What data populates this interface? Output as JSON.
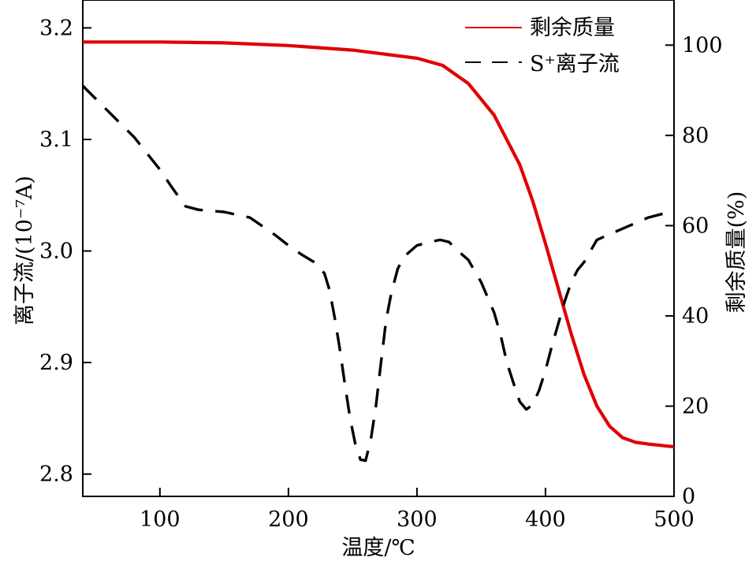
{
  "chart_data": {
    "type": "line",
    "xlabel": "温度/℃",
    "ylabel_left": "离子流/(10⁻⁷A)",
    "ylabel_right": "剩余质量(%)",
    "xlim": [
      40,
      500
    ],
    "ylim_left": [
      2.78,
      3.225
    ],
    "ylim_right": [
      0,
      110
    ],
    "x_ticks": [
      100,
      200,
      300,
      400,
      500
    ],
    "y_left_ticks": [
      2.8,
      2.9,
      3.0,
      3.1,
      3.2
    ],
    "y_right_ticks": [
      0,
      20,
      40,
      60,
      80,
      100
    ],
    "x_tick_labels": [
      "100",
      "200",
      "300",
      "400",
      "500"
    ],
    "y_left_tick_labels": [
      "2.8",
      "2.9",
      "3.0",
      "3.1",
      "3.2"
    ],
    "y_right_tick_labels": [
      "0",
      "20",
      "40",
      "60",
      "80",
      "100"
    ],
    "grid": false,
    "legend_position": "top-right",
    "series": [
      {
        "name": "剩余质量",
        "axis": "right",
        "color": "#e00000",
        "style": "solid",
        "x": [
          40,
          100,
          150,
          200,
          250,
          300,
          320,
          340,
          360,
          380,
          390,
          400,
          410,
          420,
          430,
          440,
          450,
          460,
          470,
          480,
          490,
          500
        ],
        "y": [
          100.7,
          100.7,
          100.5,
          99.9,
          98.9,
          97.1,
          95.5,
          91.5,
          84.5,
          73.5,
          65.5,
          56,
          46,
          36,
          27,
          20,
          15.5,
          13,
          12,
          11.6,
          11.3,
          11
        ]
      },
      {
        "name": "S⁺离子流",
        "axis": "left",
        "color": "#000000",
        "style": "dashed",
        "x": [
          40,
          60,
          80,
          100,
          110,
          120,
          130,
          150,
          170,
          180,
          190,
          200,
          210,
          220,
          228,
          232,
          236,
          240,
          244,
          248,
          252,
          256,
          260,
          264,
          268,
          272,
          276,
          280,
          285,
          290,
          300,
          310,
          318,
          325,
          330,
          340,
          350,
          360,
          365,
          370,
          375,
          380,
          385,
          390,
          395,
          400,
          405,
          410,
          415,
          420,
          425,
          430,
          440,
          460,
          480,
          490,
          500
        ],
        "y": [
          3.148,
          3.125,
          3.102,
          3.073,
          3.056,
          3.04,
          3.037,
          3.035,
          3.03,
          3.022,
          3.014,
          3.005,
          2.997,
          2.99,
          2.98,
          2.965,
          2.94,
          2.912,
          2.88,
          2.85,
          2.827,
          2.813,
          2.812,
          2.83,
          2.86,
          2.9,
          2.938,
          2.962,
          2.984,
          2.995,
          3.005,
          3.008,
          3.01,
          3.008,
          3.002,
          2.992,
          2.972,
          2.945,
          2.925,
          2.9,
          2.882,
          2.865,
          2.858,
          2.862,
          2.875,
          2.893,
          2.915,
          2.935,
          2.955,
          2.972,
          2.983,
          2.99,
          3.01,
          3.02,
          3.03,
          3.033,
          3.034
        ]
      }
    ]
  }
}
